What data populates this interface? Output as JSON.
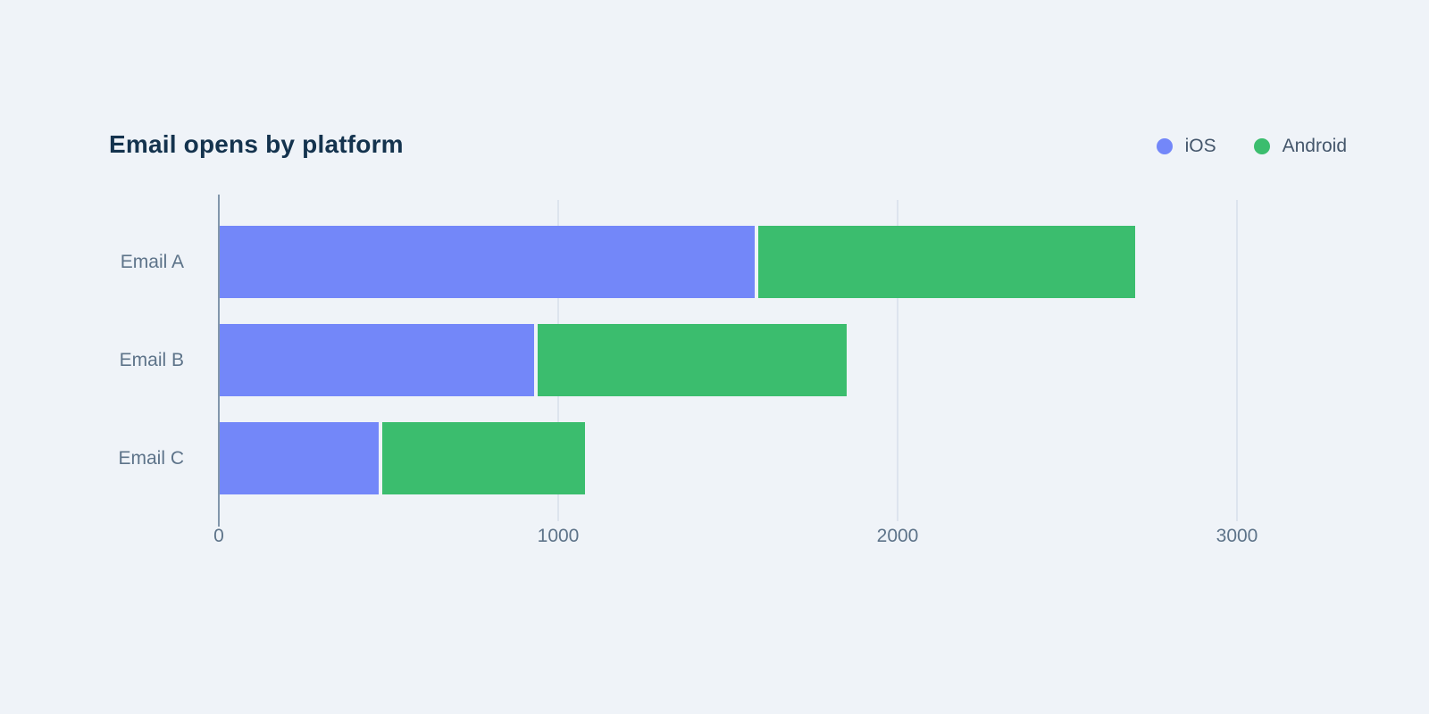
{
  "title": "Email opens by platform",
  "legend": {
    "items": [
      {
        "label": "iOS",
        "color": "#7387f9"
      },
      {
        "label": "Android",
        "color": "#3bbd6e"
      }
    ]
  },
  "chart_data": {
    "type": "bar",
    "orientation": "horizontal",
    "stacked": true,
    "title": "Email opens by platform",
    "categories": [
      "Email A",
      "Email B",
      "Email C"
    ],
    "series": [
      {
        "name": "iOS",
        "color": "#7387f9",
        "values": [
          1580,
          930,
          470
        ]
      },
      {
        "name": "Android",
        "color": "#3bbd6e",
        "values": [
          1120,
          920,
          610
        ]
      }
    ],
    "totals": [
      2700,
      1850,
      1080
    ],
    "xlabel": "",
    "ylabel": "",
    "x_ticks": [
      0,
      1000,
      2000,
      3000
    ],
    "xlim": [
      0,
      3200
    ],
    "grid": true,
    "legend_position": "top-right"
  },
  "colors": {
    "background": "#eff3f8",
    "title": "#14334e",
    "axis_line": "#8296ab",
    "gridline": "#dde4ee",
    "tick_label": "#5d7389",
    "category_label": "#5d7389",
    "legend_label": "#44566b"
  }
}
